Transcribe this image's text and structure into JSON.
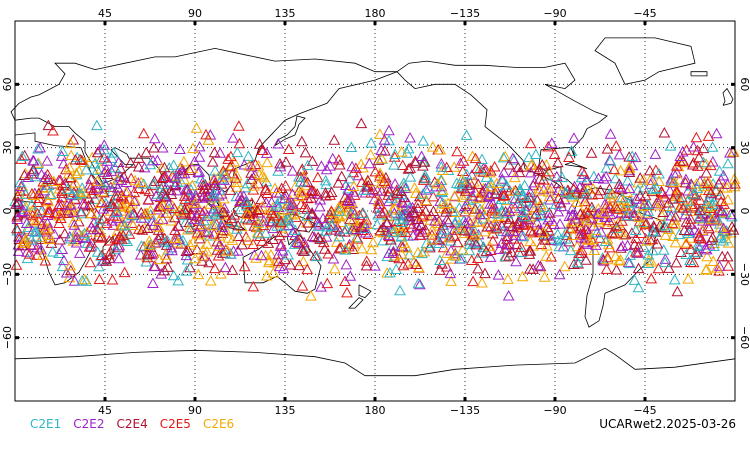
{
  "map": {
    "lon_ticks_top": [
      "45",
      "90",
      "135",
      "180",
      "−135",
      "−90",
      "−45"
    ],
    "lon_ticks_bottom": [
      "45",
      "90",
      "135",
      "180",
      "−135",
      "−90",
      "−45"
    ],
    "lat_ticks_left": [
      "60",
      "30",
      "0",
      "−30",
      "−60"
    ],
    "lat_ticks_right": [
      "60",
      "30",
      "0",
      "−30",
      "−60"
    ],
    "lon_range": [
      0,
      360
    ],
    "lat_range": [
      -90,
      90
    ],
    "grid": true,
    "marker": "open-triangle"
  },
  "legend": {
    "items": [
      {
        "label": "C2E1",
        "color": "#2fb5c4"
      },
      {
        "label": "C2E2",
        "color": "#a020c8"
      },
      {
        "label": "C2E4",
        "color": "#b01030"
      },
      {
        "label": "C2E5",
        "color": "#e01818"
      },
      {
        "label": "C2E6",
        "color": "#f5a800"
      }
    ]
  },
  "caption": "UCARwet2.2025-03-26",
  "chart_data": {
    "type": "scatter",
    "title": "",
    "xlabel": "",
    "ylabel": "",
    "xlim": [
      0,
      360
    ],
    "ylim": [
      -90,
      90
    ],
    "series": [
      {
        "name": "C2E1",
        "color": "#2fb5c4",
        "lat_band": [
          -45,
          45
        ]
      },
      {
        "name": "C2E2",
        "color": "#a020c8",
        "lat_band": [
          -45,
          45
        ]
      },
      {
        "name": "C2E4",
        "color": "#b01030",
        "lat_band": [
          -45,
          45
        ]
      },
      {
        "name": "C2E5",
        "color": "#e01818",
        "lat_band": [
          -45,
          45
        ]
      },
      {
        "name": "C2E6",
        "color": "#f5a800",
        "lat_band": [
          -45,
          45
        ]
      }
    ]
  }
}
